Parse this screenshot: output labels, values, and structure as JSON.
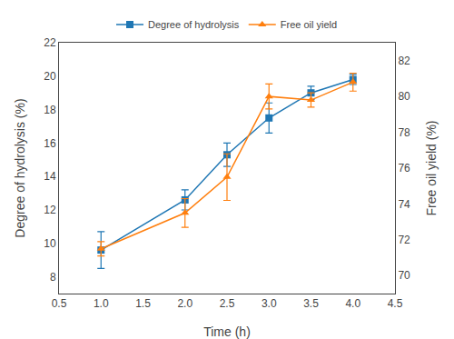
{
  "chart_data": {
    "type": "line",
    "x": [
      1.0,
      2.0,
      2.5,
      3.0,
      3.5,
      4.0
    ],
    "series": [
      {
        "name": "Degree of hydrolysis",
        "values": [
          9.6,
          12.6,
          15.3,
          17.5,
          19.0,
          19.8
        ],
        "errors": [
          1.1,
          0.6,
          0.7,
          0.9,
          0.4,
          0.3
        ],
        "marker": "square"
      },
      {
        "name": "Free oil yield",
        "values": [
          71.5,
          73.5,
          75.5,
          80.0,
          79.8,
          80.8
        ],
        "errors": [
          0.4,
          0.8,
          1.3,
          0.7,
          0.4,
          0.5
        ],
        "marker": "triangle-up",
        "axis": "y2"
      }
    ],
    "x_label": "Time (h)",
    "y_label": "Degree of hydrolysis (%)",
    "y2_label": "Free oil yield (%)",
    "xlim": [
      0.5,
      4.5
    ],
    "xticks": [
      0.5,
      {
        "value": 1.0,
        "label": "1.0"
      },
      1.5,
      {
        "value": 2.0,
        "label": "2.0"
      },
      2.5,
      {
        "value": 3.0,
        "label": "3.0"
      },
      3.5,
      {
        "value": 4.0,
        "label": "4.0"
      },
      4.5
    ],
    "ylim": [
      7.0,
      22.0
    ],
    "yticks": [
      8,
      10,
      12,
      14,
      16,
      18,
      20,
      22
    ],
    "y2lim": [
      69.0,
      83.0
    ],
    "y2ticks": [
      70,
      72,
      74,
      76,
      78,
      80,
      82
    ],
    "grid": false,
    "legend": "top"
  }
}
